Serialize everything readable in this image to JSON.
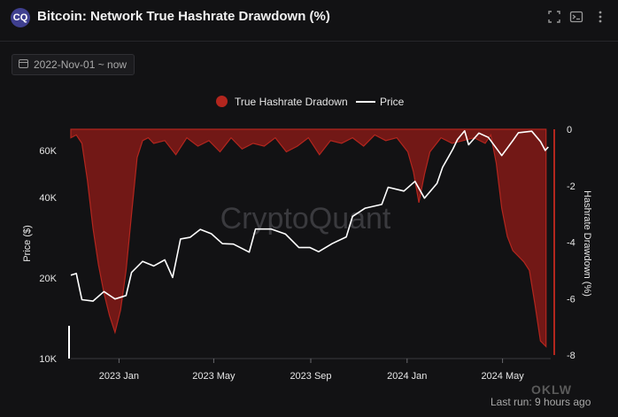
{
  "header": {
    "logo_text": "CQ",
    "title": "Bitcoin: Network True Hashrate Drawdown (%)",
    "fullscreen_icon": "fullscreen-icon",
    "terminal_icon": "terminal-icon",
    "more_icon": "more-vertical-icon"
  },
  "filter": {
    "date_range": "2022-Nov-01 ~ now",
    "calendar_icon": "calendar-icon"
  },
  "footer": {
    "last_run": "Last run: 9 hours ago"
  },
  "watermark": "CryptoQuant",
  "corner_mark": "OKLW",
  "chart_data": {
    "type": "line+area",
    "legend_position": "top-center",
    "x_ticks": [
      "2023 Jan",
      "2023 May",
      "2023 Sep",
      "2024 Jan",
      "2024 May"
    ],
    "x_range": [
      "2022-11-01",
      "2024-07-01"
    ],
    "y_left": {
      "label": "Price ($)",
      "scale": "log",
      "ticks": [
        "10K",
        "20K",
        "40K",
        "60K"
      ],
      "tick_values": [
        10000,
        20000,
        40000,
        60000
      ],
      "range": [
        10000,
        72000
      ]
    },
    "y_right": {
      "label": "Hashrate Drawdown (%)",
      "ticks": [
        "0",
        "-2",
        "-4",
        "-6",
        "-8"
      ],
      "tick_values": [
        0,
        -2,
        -4,
        -6,
        -8
      ],
      "range": [
        -8,
        0
      ]
    },
    "series": [
      {
        "name": "True Hashrate Dradown",
        "axis": "right",
        "type": "area",
        "color": "#b3261e",
        "x": [
          "2022-11-01",
          "2022-11-08",
          "2022-11-15",
          "2022-11-22",
          "2022-11-29",
          "2022-12-06",
          "2022-12-13",
          "2022-12-20",
          "2022-12-27",
          "2023-01-03",
          "2023-01-10",
          "2023-01-17",
          "2023-01-24",
          "2023-01-31",
          "2023-02-07",
          "2023-02-14",
          "2023-02-28",
          "2023-03-14",
          "2023-03-28",
          "2023-04-11",
          "2023-04-25",
          "2023-05-09",
          "2023-05-23",
          "2023-06-06",
          "2023-06-20",
          "2023-07-04",
          "2023-07-18",
          "2023-08-01",
          "2023-08-15",
          "2023-08-29",
          "2023-09-12",
          "2023-09-26",
          "2023-10-10",
          "2023-10-24",
          "2023-11-07",
          "2023-11-21",
          "2023-12-05",
          "2023-12-19",
          "2024-01-02",
          "2024-01-09",
          "2024-01-16",
          "2024-01-23",
          "2024-01-30",
          "2024-02-13",
          "2024-02-27",
          "2024-03-12",
          "2024-03-26",
          "2024-04-09",
          "2024-04-16",
          "2024-04-23",
          "2024-04-30",
          "2024-05-07",
          "2024-05-14",
          "2024-05-21",
          "2024-05-28",
          "2024-06-04",
          "2024-06-11",
          "2024-06-18",
          "2024-06-25"
        ],
        "values": [
          -0.3,
          -0.2,
          -0.5,
          -1.8,
          -3.5,
          -4.8,
          -5.8,
          -6.6,
          -7.2,
          -6.4,
          -5.0,
          -3.0,
          -1.0,
          -0.4,
          -0.3,
          -0.5,
          -0.4,
          -0.9,
          -0.3,
          -0.6,
          -0.4,
          -0.8,
          -0.3,
          -0.7,
          -0.5,
          -0.6,
          -0.3,
          -0.8,
          -0.6,
          -0.3,
          -0.9,
          -0.4,
          -0.5,
          -0.3,
          -0.6,
          -0.2,
          -0.4,
          -0.3,
          -0.8,
          -1.5,
          -2.6,
          -1.6,
          -0.8,
          -0.3,
          -0.5,
          -0.4,
          -0.3,
          -0.5,
          -0.2,
          -1.2,
          -2.8,
          -3.8,
          -4.3,
          -4.5,
          -4.7,
          -5.0,
          -6.2,
          -7.5,
          -7.7
        ]
      },
      {
        "name": "Price",
        "axis": "left",
        "type": "line",
        "color": "#ffffff",
        "x": [
          "2022-11-01",
          "2022-11-08",
          "2022-11-15",
          "2022-11-29",
          "2022-12-13",
          "2022-12-27",
          "2023-01-10",
          "2023-01-17",
          "2023-01-31",
          "2023-02-14",
          "2023-02-28",
          "2023-03-10",
          "2023-03-20",
          "2023-04-01",
          "2023-04-14",
          "2023-04-28",
          "2023-05-12",
          "2023-05-26",
          "2023-06-15",
          "2023-06-23",
          "2023-07-13",
          "2023-07-31",
          "2023-08-17",
          "2023-08-31",
          "2023-09-11",
          "2023-09-28",
          "2023-10-16",
          "2023-10-24",
          "2023-11-09",
          "2023-11-30",
          "2023-12-08",
          "2023-12-28",
          "2024-01-11",
          "2024-01-23",
          "2024-02-08",
          "2024-02-15",
          "2024-02-28",
          "2024-03-05",
          "2024-03-14",
          "2024-03-19",
          "2024-04-01",
          "2024-04-13",
          "2024-04-30",
          "2024-05-15",
          "2024-05-21",
          "2024-06-07",
          "2024-06-18",
          "2024-06-24",
          "2024-06-28"
        ],
        "values": [
          20500,
          20800,
          16600,
          16400,
          17800,
          16700,
          17200,
          21000,
          23100,
          22200,
          23400,
          20100,
          28000,
          28400,
          30400,
          29300,
          26900,
          26800,
          25000,
          30500,
          30500,
          29200,
          26000,
          26000,
          25100,
          26900,
          28500,
          34000,
          36500,
          37700,
          43700,
          42300,
          46000,
          39800,
          45200,
          51900,
          60700,
          66000,
          71000,
          63000,
          69700,
          67100,
          57400,
          65900,
          69900,
          70800,
          64800,
          60000,
          61800
        ]
      }
    ]
  }
}
